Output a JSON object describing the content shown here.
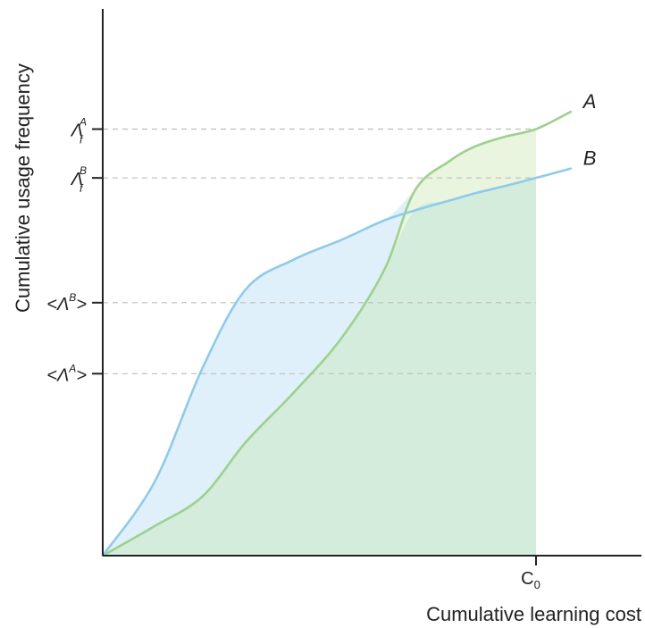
{
  "chart_data": {
    "type": "area",
    "xlabel": "Cumulative learning cost",
    "ylabel": "Cumulative usage frequency",
    "xlim": [
      0,
      1.25
    ],
    "ylim": [
      0,
      1.0
    ],
    "grid": false,
    "x_ticks": [
      {
        "base": "C",
        "sub": "0",
        "x": 1.0
      }
    ],
    "y_ticks": [
      {
        "id": "lambda_f_A",
        "base": "Λ",
        "sup": "A",
        "sub": "f",
        "y": 0.865
      },
      {
        "id": "lambda_f_B",
        "base": "Λ",
        "sup": "B",
        "sub": "f",
        "y": 0.766
      },
      {
        "id": "mean_lambda_B",
        "base": "<Λ",
        "sup": "B",
        "suffix": ">",
        "y": 0.513
      },
      {
        "id": "mean_lambda_A",
        "base": "<Λ",
        "sup": "A",
        "suffix": ">",
        "y": 0.369
      }
    ],
    "series": [
      {
        "name": "A",
        "color": "#9fd08e",
        "fill": "#d3ecdc",
        "x": [
          0.0,
          0.12,
          0.23,
          0.33,
          0.44,
          0.55,
          0.65,
          0.72,
          0.8,
          0.86,
          0.93,
          1.0,
          1.08
        ],
        "y": [
          0.0,
          0.06,
          0.12,
          0.23,
          0.33,
          0.44,
          0.58,
          0.74,
          0.8,
          0.83,
          0.85,
          0.865,
          0.9
        ]
      },
      {
        "name": "B",
        "color": "#8fcbe8",
        "fill": "#e0f0fa",
        "x": [
          0.0,
          0.12,
          0.23,
          0.33,
          0.44,
          0.55,
          0.65,
          0.72,
          0.8,
          0.86,
          0.93,
          1.0,
          1.08
        ],
        "y": [
          0.0,
          0.15,
          0.38,
          0.54,
          0.6,
          0.64,
          0.68,
          0.7,
          0.72,
          0.735,
          0.75,
          0.766,
          0.785
        ]
      }
    ],
    "fill_until_x": 1.0,
    "highlight": {
      "region": "A above B",
      "fill": "#e9f5df"
    }
  }
}
